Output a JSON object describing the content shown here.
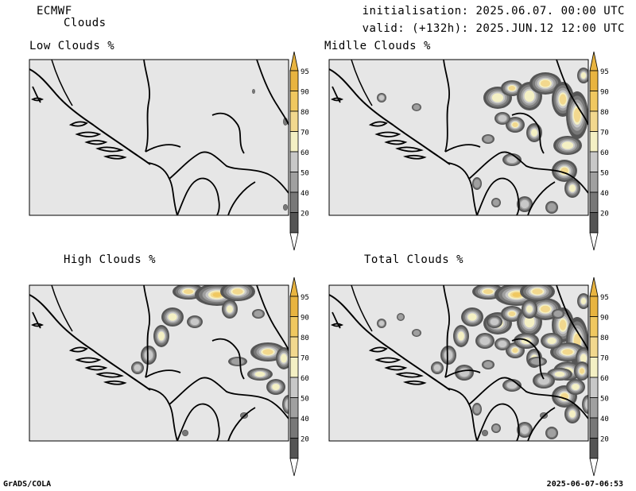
{
  "header": {
    "model": "ECMWF",
    "product": "Clouds",
    "initialisation": "initialisation: 2025.06.07. 00:00 UTC",
    "valid": "valid: (+132h): 2025.JUN.12 12:00 UTC"
  },
  "panels": [
    {
      "title": "Low Clouds %",
      "cloud_level": "none"
    },
    {
      "title": "Midlle Clouds %",
      "cloud_level": "moderate"
    },
    {
      "title": "High Clouds %",
      "cloud_level": "moderate"
    },
    {
      "title": "Total Clouds %",
      "cloud_level": "heavy"
    }
  ],
  "colorbar": {
    "ticks": [
      "95",
      "90",
      "80",
      "70",
      "60",
      "50",
      "40",
      "20"
    ],
    "colors": [
      "#e8b440",
      "#f0c860",
      "#f2d88e",
      "#f4f0c4",
      "#c8c8c8",
      "#a0a0a0",
      "#787878",
      "#555555"
    ]
  },
  "colors": {
    "background": "#e6e6e6",
    "border": "#000000"
  },
  "footer": {
    "left": "GrADS/COLA",
    "right": "2025-06-07-06:53"
  }
}
